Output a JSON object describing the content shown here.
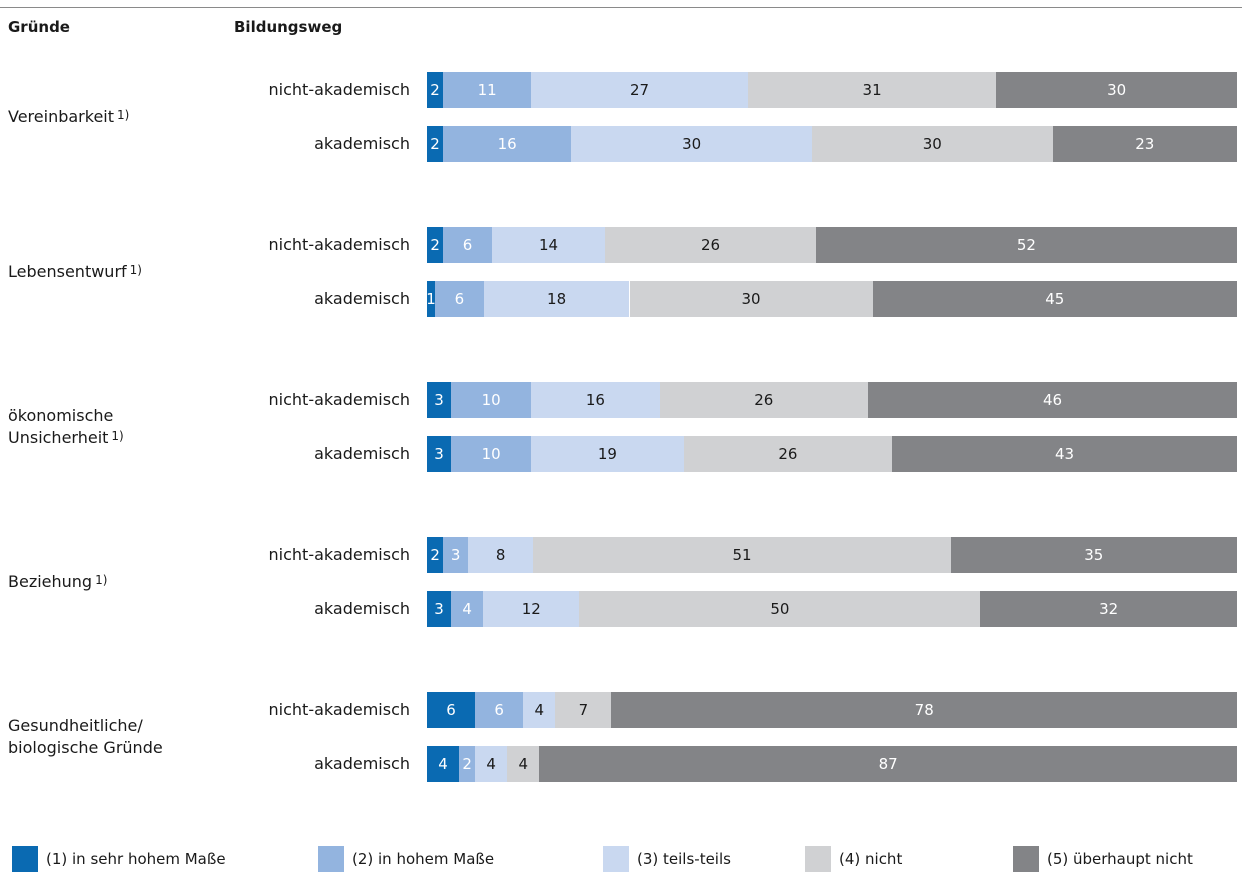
{
  "header": {
    "col_reasons": "Gründe",
    "col_education": "Bildungsweg"
  },
  "chart_data": {
    "type": "bar",
    "orientation": "horizontal-stacked-100",
    "unit": "%",
    "categories_rows": [
      "nicht-akademisch",
      "akademisch"
    ],
    "series": [
      {
        "name": "(1) in sehr hohem Maße",
        "color": "#0a6ab2",
        "text_color": "#ffffff"
      },
      {
        "name": "(2) in hohem Maße",
        "color": "#93b4df",
        "text_color": "#ffffff"
      },
      {
        "name": "(3) teils-teils",
        "color": "#c9d8f0",
        "text_color": "#1a1a1a"
      },
      {
        "name": "(4) nicht",
        "color": "#d0d1d3",
        "text_color": "#1a1a1a"
      },
      {
        "name": "(5) überhaupt nicht",
        "color": "#838487",
        "text_color": "#ffffff"
      }
    ],
    "groups": [
      {
        "name": "Vereinbarkeit",
        "footnote": "1)",
        "label_lines": [
          "Vereinbarkeit"
        ],
        "rows": [
          {
            "label": "nicht-akademisch",
            "values": [
              2,
              11,
              27,
              31,
              30
            ]
          },
          {
            "label": "akademisch",
            "values": [
              2,
              16,
              30,
              30,
              23
            ]
          }
        ]
      },
      {
        "name": "Lebensentwurf",
        "footnote": "1)",
        "label_lines": [
          "Lebensentwurf"
        ],
        "rows": [
          {
            "label": "nicht-akademisch",
            "values": [
              2,
              6,
              14,
              26,
              52
            ]
          },
          {
            "label": "akademisch",
            "values": [
              1,
              6,
              18,
              30,
              45
            ]
          }
        ]
      },
      {
        "name": "ökonomische Unsicherheit",
        "footnote": "1)",
        "label_lines": [
          "ökonomische",
          "Unsicherheit"
        ],
        "rows": [
          {
            "label": "nicht-akademisch",
            "values": [
              3,
              10,
              16,
              26,
              46
            ]
          },
          {
            "label": "akademisch",
            "values": [
              3,
              10,
              19,
              26,
              43
            ]
          }
        ]
      },
      {
        "name": "Beziehung",
        "footnote": "1)",
        "label_lines": [
          "Beziehung"
        ],
        "rows": [
          {
            "label": "nicht-akademisch",
            "values": [
              2,
              3,
              8,
              51,
              35
            ]
          },
          {
            "label": "akademisch",
            "values": [
              3,
              4,
              12,
              50,
              32
            ]
          }
        ]
      },
      {
        "name": "Gesundheitliche/ biologische Gründe",
        "footnote": "",
        "label_lines": [
          "Gesundheitliche/",
          "biologische Gründe"
        ],
        "rows": [
          {
            "label": "nicht-akademisch",
            "values": [
              6,
              6,
              4,
              7,
              78
            ]
          },
          {
            "label": "akademisch",
            "values": [
              4,
              2,
              4,
              4,
              87
            ]
          }
        ]
      }
    ],
    "legend_position": "bottom"
  }
}
